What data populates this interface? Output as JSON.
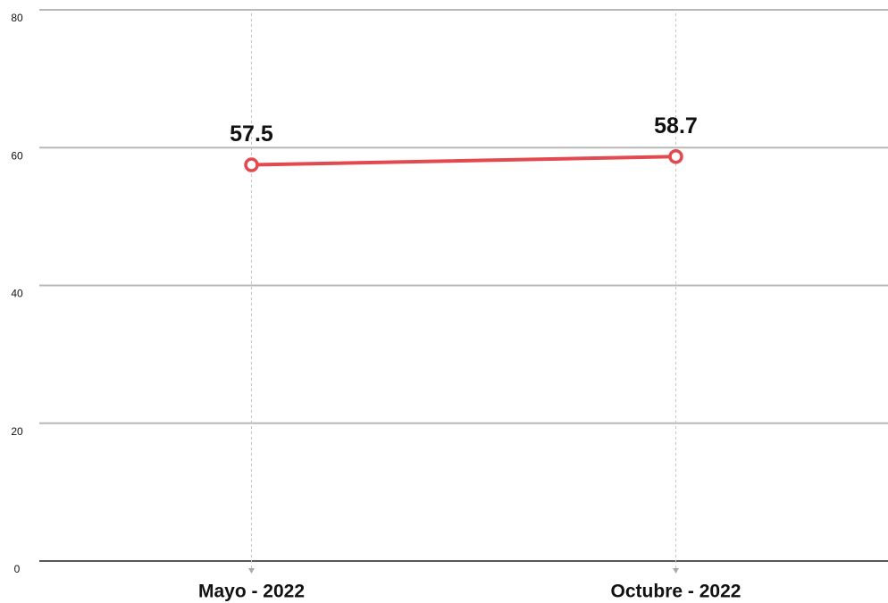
{
  "chart_data": {
    "type": "line",
    "categories": [
      "Mayo - 2022",
      "Octubre - 2022"
    ],
    "values": [
      57.5,
      58.7
    ],
    "color": "#e24a4f",
    "ylim": [
      0,
      80
    ],
    "yticks": [
      0,
      20,
      40,
      60,
      80
    ],
    "grid": true
  }
}
